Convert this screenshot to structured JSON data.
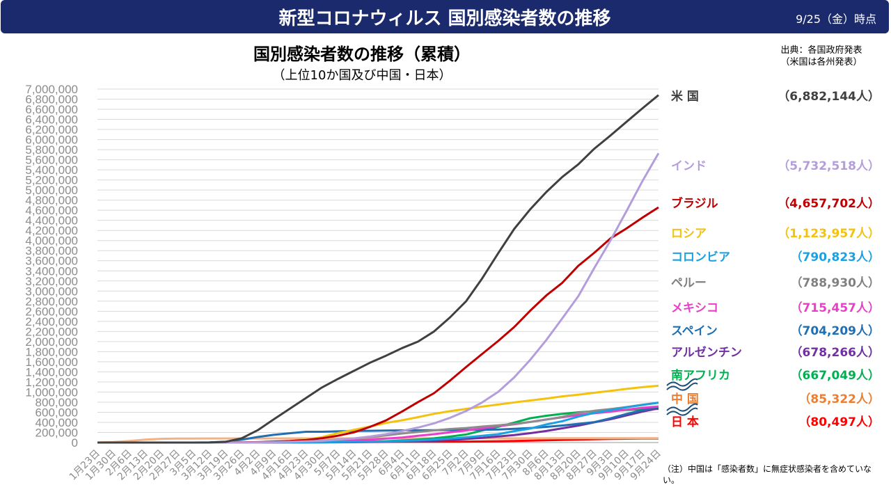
{
  "header": {
    "title": "新型コロナウィルス 国別感染者数の推移",
    "date": "9/25（金）時点"
  },
  "source": {
    "line1": "出典：各国政府発表",
    "line2": "（米国は各州発表）"
  },
  "note": {
    "text": "（注）中国は「感染者数」に無症状感染者を含めていない。"
  },
  "chart_data": {
    "type": "line",
    "title": "国別感染者数の推移（累積）",
    "subtitle": "（上位10か国及び中国・日本）",
    "y_ticks": [
      "0",
      "200,000",
      "400,000",
      "600,000",
      "800,000",
      "1,000,000",
      "1,200,000",
      "1,400,000",
      "1,600,000",
      "1,800,000",
      "2,000,000",
      "2,200,000",
      "2,400,000",
      "2,600,000",
      "2,800,000",
      "3,000,000",
      "3,200,000",
      "3,400,000",
      "3,600,000",
      "3,800,000",
      "4,000,000",
      "4,200,000",
      "4,400,000",
      "4,600,000",
      "4,800,000",
      "5,000,000",
      "5,200,000",
      "5,400,000",
      "5,600,000",
      "5,800,000",
      "6,000,000",
      "6,200,000",
      "6,400,000",
      "6,600,000",
      "6,800,000",
      "7,000,000"
    ],
    "ylim": [
      0,
      7000000
    ],
    "grid": true,
    "x_ticks": [
      "1月23日",
      "1月30日",
      "2月6日",
      "2月13日",
      "2月20日",
      "2月27日",
      "3月5日",
      "3月12日",
      "3月19日",
      "3月26日",
      "4月2日",
      "4月9日",
      "4月16日",
      "4月23日",
      "4月30日",
      "5月7日",
      "5月14日",
      "5月21日",
      "5月28日",
      "6月4日",
      "6月11日",
      "6月18日",
      "6月25日",
      "7月2日",
      "7月9日",
      "7月16日",
      "7月23日",
      "7月30日",
      "8月6日",
      "8月13日",
      "8月20日",
      "8月27日",
      "9月3日",
      "9月10日",
      "9月17日",
      "9月24日"
    ],
    "series": [
      {
        "name": "米 国",
        "label_value": "（6,882,144人）",
        "color": "#404040",
        "values": [
          1,
          5,
          12,
          14,
          14,
          60,
          230,
          1600,
          14000,
          85000,
          245000,
          460000,
          670000,
          880000,
          1090000,
          1260000,
          1420000,
          1580000,
          1720000,
          1870000,
          2000000,
          2200000,
          2480000,
          2800000,
          3250000,
          3750000,
          4230000,
          4620000,
          4960000,
          5260000,
          5510000,
          5820000,
          6080000,
          6350000,
          6620000,
          6880000
        ]
      },
      {
        "name": "インド",
        "label_value": "（5,732,518人）",
        "color": "#b39ddb",
        "values": [
          0,
          1,
          3,
          3,
          3,
          3,
          31,
          74,
          195,
          727,
          2500,
          7500,
          13500,
          23000,
          35000,
          56000,
          82000,
          118000,
          165000,
          227000,
          298000,
          381000,
          490000,
          626000,
          795000,
          1005000,
          1290000,
          1640000,
          2030000,
          2460000,
          2900000,
          3460000,
          4000000,
          4580000,
          5180000,
          5730000
        ]
      },
      {
        "name": "ブラジル",
        "label_value": "（4,657,702人）",
        "color": "#c00000",
        "values": [
          0,
          0,
          0,
          0,
          0,
          1,
          8,
          77,
          621,
          2900,
          8000,
          19600,
          30400,
          50000,
          85000,
          135000,
          203000,
          310000,
          438000,
          614000,
          802000,
          979000,
          1228000,
          1497000,
          1756000,
          2012000,
          2288000,
          2613000,
          2913000,
          3164000,
          3501000,
          3761000,
          4041000,
          4238000,
          4455000,
          4658000
        ]
      },
      {
        "name": "ロシア",
        "label_value": "（1,123,957人）",
        "color": "#f4c20d",
        "values": [
          0,
          0,
          2,
          2,
          2,
          2,
          4,
          28,
          199,
          840,
          3500,
          12000,
          28000,
          57000,
          106000,
          187000,
          252000,
          318000,
          388000,
          441000,
          503000,
          569000,
          621000,
          667000,
          713000,
          752000,
          795000,
          834000,
          871000,
          915000,
          946000,
          987000,
          1022000,
          1063000,
          1097000,
          1124000
        ]
      },
      {
        "name": "コロンビア",
        "label_value": "（790,823人）",
        "color": "#1ba1e2",
        "values": [
          0,
          0,
          0,
          0,
          0,
          0,
          1,
          9,
          128,
          491,
          1065,
          2473,
          3439,
          4561,
          7006,
          9456,
          13610,
          18330,
          25366,
          33354,
          42078,
          60217,
          77113,
          103700,
          133973,
          165169,
          226373,
          276578,
          357710,
          422519,
          513719,
          587920,
          641574,
          699187,
          743945,
          790823
        ]
      },
      {
        "name": "ペルー",
        "label_value": "（788,930人）",
        "color": "#8c8c8c",
        "values": [
          0,
          0,
          0,
          0,
          0,
          0,
          1,
          22,
          234,
          580,
          1414,
          5256,
          12491,
          21648,
          36976,
          58526,
          80604,
          108769,
          141779,
          178914,
          208823,
          240908,
          268602,
          288477,
          316448,
          341586,
          371096,
          407492,
          455409,
          507996,
          585236,
          629961,
          663437,
          702776,
          750098,
          788930
        ]
      },
      {
        "name": "メキシコ",
        "label_value": "（715,457人）",
        "color": "#e83fc8",
        "values": [
          0,
          0,
          0,
          0,
          0,
          1,
          5,
          12,
          118,
          475,
          1378,
          3441,
          6297,
          11633,
          19224,
          29616,
          40186,
          56594,
          78023,
          101238,
          133974,
          165455,
          202951,
          238511,
          282283,
          324041,
          362274,
          408449,
          456100,
          498380,
          543806,
          579914,
          610957,
          652364,
          688954,
          715457
        ]
      },
      {
        "name": "スペイン",
        "label_value": "（704,209人）",
        "color": "#1f6fb2",
        "values": [
          0,
          1,
          1,
          2,
          2,
          25,
          261,
          3004,
          17395,
          56188,
          110238,
          152446,
          184948,
          213024,
          213435,
          221447,
          229540,
          232555,
          237906,
          240660,
          242280,
          245575,
          248469,
          250545,
          253908,
          258855,
          272421,
          288522,
          309855,
          337334,
          370867,
          405436,
          479554,
          566326,
          640040,
          704209
        ]
      },
      {
        "name": "アルゼンチン",
        "label_value": "（678,266人）",
        "color": "#7030a0",
        "values": [
          0,
          0,
          0,
          0,
          0,
          0,
          1,
          31,
          128,
          502,
          1133,
          1894,
          2669,
          3435,
          4285,
          5611,
          6879,
          9283,
          13933,
          20197,
          25987,
          35552,
          49851,
          69941,
          93435,
          119301,
          148027,
          185373,
          228195,
          282437,
          336802,
          401239,
          461882,
          535705,
          613658,
          678266
        ]
      },
      {
        "name": "南アフリカ",
        "label_value": "（667,049人）",
        "color": "#00b050",
        "values": [
          0,
          0,
          0,
          0,
          0,
          0,
          1,
          24,
          202,
          927,
          1462,
          2003,
          2605,
          3953,
          5647,
          8232,
          12074,
          19137,
          27403,
          40792,
          58568,
          83890,
          118375,
          159333,
          238339,
          311049,
          394948,
          482169,
          529877,
          568919,
          599940,
          620132,
          633015,
          643366,
          655572,
          667049
        ]
      },
      {
        "name": "中 国",
        "label_value": "（85,322人）",
        "color": "#f4b183",
        "values": [
          830,
          9692,
          31161,
          59895,
          75077,
          78514,
          80565,
          80980,
          81203,
          81554,
          81639,
          81953,
          82692,
          82836,
          82874,
          82885,
          82929,
          82971,
          83001,
          83021,
          83064,
          83265,
          83483,
          83537,
          83581,
          83644,
          84060,
          84337,
          84596,
          84808,
          84917,
          85031,
          85102,
          85168,
          85255,
          85322
        ]
      },
      {
        "name": "日 本",
        "label_value": "（80,497人）",
        "color": "#ff0000",
        "values": [
          1,
          15,
          25,
          41,
          105,
          214,
          349,
          675,
          1007,
          1724,
          3139,
          5347,
          9231,
          12368,
          14088,
          15649,
          16237,
          16536,
          16804,
          17064,
          17439,
          17799,
          18197,
          18874,
          21868,
          26303,
          31901,
          38280,
          44758,
          51500,
          58500,
          66800,
          71400,
          75500,
          78100,
          80497
        ]
      }
    ],
    "label_order": [
      "米 国",
      "インド",
      "ブラジル",
      "ロシア",
      "コロンビア",
      "ペルー",
      "メキシコ",
      "スペイン",
      "アルゼンチン",
      "南アフリカ",
      "中 国",
      "日 本"
    ],
    "label_colors": {
      "米 国": "#404040",
      "インド": "#b39ddb",
      "ブラジル": "#c00000",
      "ロシア": "#f4c20d",
      "コロンビア": "#1ba1e2",
      "ペルー": "#808080",
      "メキシコ": "#e83fc8",
      "スペイン": "#1f6fb2",
      "アルゼンチン": "#7030a0",
      "南アフリカ": "#00b050",
      "中 国": "#ed7d31",
      "日 本": "#ff0000"
    }
  }
}
